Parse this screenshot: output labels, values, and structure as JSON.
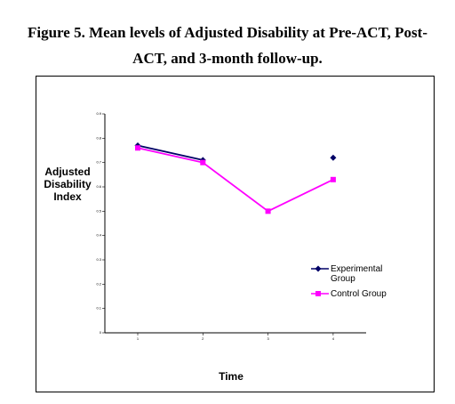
{
  "chart_data": {
    "type": "line",
    "title": "Figure 5. Mean levels of Adjusted Disability at Pre-ACT, Post-ACT, and 3-month follow-up.",
    "x_label": "Time",
    "y_label": "Adjusted Disability Index",
    "categories": [
      "1",
      "2",
      "3",
      "4"
    ],
    "series": [
      {
        "name": "Experimental Group",
        "color": "#000066",
        "marker": "diamond",
        "values": [
          0.77,
          0.71,
          null,
          0.72
        ]
      },
      {
        "name": "Control Group",
        "color": "#ff00ff",
        "marker": "square",
        "values": [
          0.76,
          0.7,
          0.5,
          0.63
        ]
      }
    ],
    "ylim": [
      0,
      0.9
    ],
    "yticks": [
      0,
      0.1,
      0.2,
      0.3,
      0.4,
      0.5,
      0.6,
      0.7,
      0.8,
      0.9
    ]
  }
}
